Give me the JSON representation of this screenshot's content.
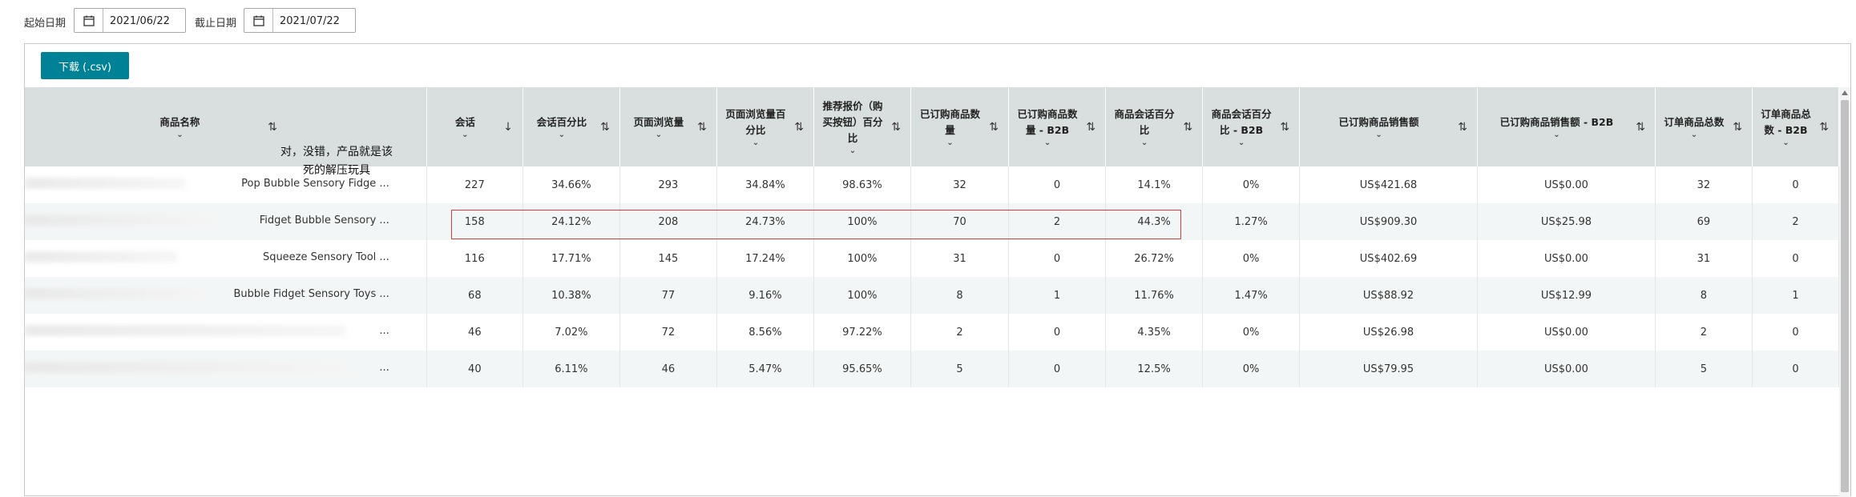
{
  "filters": {
    "start_label": "起始日期",
    "start_value": "2021/06/22",
    "end_label": "截止日期",
    "end_value": "2021/07/22"
  },
  "toolbar": {
    "download_label": "下载 (.csv)"
  },
  "columns": [
    {
      "label": "商品名称"
    },
    {
      "label": "会话"
    },
    {
      "label": "会话百分比"
    },
    {
      "label": "页面浏览量"
    },
    {
      "label": "页面浏览量百分比"
    },
    {
      "label": "推荐报价（购买按钮）百分比"
    },
    {
      "label": "已订购商品数量"
    },
    {
      "label": "已订购商品数量 - B2B"
    },
    {
      "label": "商品会话百分比"
    },
    {
      "label": "商品会话百分比 - B2B"
    },
    {
      "label": "已订购商品销售额"
    },
    {
      "label": "已订购商品销售额 - B2B"
    },
    {
      "label": "订单商品总数"
    },
    {
      "label": "订单商品总数 - B2B"
    }
  ],
  "rows": [
    {
      "name": "Pop Bubble Sensory Fidge ...",
      "cells": [
        "227",
        "34.66%",
        "293",
        "34.84%",
        "98.63%",
        "32",
        "0",
        "14.1%",
        "0%",
        "US$421.68",
        "US$0.00",
        "32",
        "0"
      ]
    },
    {
      "name": "Fidget Bubble Sensory ...",
      "cells": [
        "158",
        "24.12%",
        "208",
        "24.73%",
        "100%",
        "70",
        "2",
        "44.3%",
        "1.27%",
        "US$909.30",
        "US$25.98",
        "69",
        "2"
      ]
    },
    {
      "name": "Squeeze Sensory Tool ...",
      "cells": [
        "116",
        "17.71%",
        "145",
        "17.24%",
        "100%",
        "31",
        "0",
        "26.72%",
        "0%",
        "US$402.69",
        "US$0.00",
        "31",
        "0"
      ]
    },
    {
      "name": "Bubble Fidget Sensory Toys ...",
      "cells": [
        "68",
        "10.38%",
        "77",
        "9.16%",
        "100%",
        "8",
        "1",
        "11.76%",
        "1.47%",
        "US$88.92",
        "US$12.99",
        "8",
        "1"
      ]
    },
    {
      "name": "...",
      "cells": [
        "46",
        "7.02%",
        "72",
        "8.56%",
        "97.22%",
        "2",
        "0",
        "4.35%",
        "0%",
        "US$26.98",
        "US$0.00",
        "2",
        "0"
      ]
    },
    {
      "name": "...",
      "cells": [
        "40",
        "6.11%",
        "46",
        "5.47%",
        "95.65%",
        "5",
        "0",
        "12.5%",
        "0%",
        "US$79.95",
        "US$0.00",
        "5",
        "0"
      ]
    }
  ],
  "annotation": {
    "text": "对，没错，产品就是该死的解压玩具",
    "color": "#e23b3b"
  },
  "colors": {
    "accent": "#008296",
    "header_bg": "#d9dfdf",
    "highlight_border": "#e23b3b"
  },
  "icons": {
    "calendar": "calendar-icon",
    "sort": "sort-arrows-icon",
    "sort_desc": "arrow-down-icon",
    "caret": "chevron-down-icon"
  }
}
